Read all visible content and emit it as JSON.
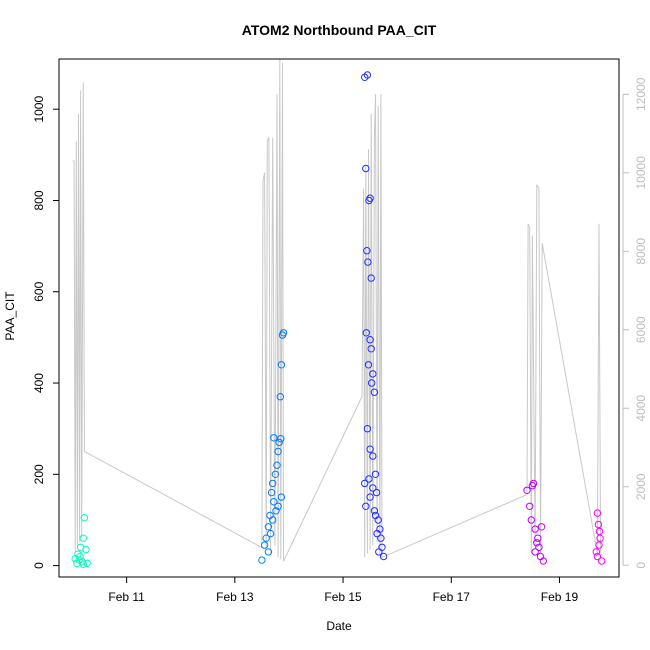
{
  "chart_data": {
    "type": "scatter",
    "title": "ATOM2 Northbound PAA_CIT",
    "xlabel": "Date",
    "ylabel": "PAA_CIT",
    "x_ticks": [
      "Feb 11",
      "Feb 13",
      "Feb 15",
      "Feb 17",
      "Feb 19"
    ],
    "x_tick_days": [
      11,
      13,
      15,
      17,
      19
    ],
    "xlim_days": [
      9.75,
      20.1
    ],
    "y_ticks": [
      "0",
      "200",
      "400",
      "600",
      "800",
      "1000"
    ],
    "y_tick_values": [
      0,
      200,
      400,
      600,
      800,
      1000
    ],
    "ylim": [
      -25,
      1110
    ],
    "y2_ticks": [
      "0",
      "2000",
      "4000",
      "6000",
      "8000",
      "10000",
      "12000"
    ],
    "y2_tick_values": [
      0,
      2000,
      4000,
      6000,
      8000,
      10000,
      12000
    ],
    "y2lim": [
      -300,
      12900
    ],
    "grid": false,
    "colors": {
      "secondary_line": "#c8c8c8",
      "right_axis": "#bdbdbd",
      "gradient": [
        "#00ffbf",
        "#00bfff",
        "#0040ff",
        "#8000ff",
        "#ff00ff"
      ]
    },
    "series": [
      {
        "values": [
          [
            10.08,
            5
          ],
          [
            10.1,
            25
          ],
          [
            10.12,
            12
          ],
          [
            10.15,
            40
          ],
          [
            10.18,
            8
          ],
          [
            10.2,
            60
          ],
          [
            10.22,
            105
          ],
          [
            10.25,
            35
          ],
          [
            10.05,
            15
          ],
          [
            10.14,
            20
          ],
          [
            10.2,
            3
          ],
          [
            10.27,
            5
          ],
          [
            13.5,
            12
          ],
          [
            13.55,
            45
          ],
          [
            13.58,
            60
          ],
          [
            13.62,
            85
          ],
          [
            13.65,
            110
          ],
          [
            13.68,
            160
          ],
          [
            13.7,
            180
          ],
          [
            13.72,
            140
          ],
          [
            13.75,
            200
          ],
          [
            13.78,
            220
          ],
          [
            13.8,
            250
          ],
          [
            13.82,
            270
          ],
          [
            13.85,
            278
          ],
          [
            13.72,
            280
          ],
          [
            13.88,
            505
          ],
          [
            13.9,
            510
          ],
          [
            13.86,
            440
          ],
          [
            13.84,
            370
          ],
          [
            13.76,
            120
          ],
          [
            13.8,
            130
          ],
          [
            13.66,
            70
          ],
          [
            13.7,
            100
          ],
          [
            13.62,
            30
          ],
          [
            13.86,
            150
          ],
          [
            15.4,
            1070
          ],
          [
            15.45,
            1075
          ],
          [
            15.42,
            870
          ],
          [
            15.48,
            800
          ],
          [
            15.5,
            805
          ],
          [
            15.44,
            690
          ],
          [
            15.46,
            665
          ],
          [
            15.52,
            630
          ],
          [
            15.43,
            510
          ],
          [
            15.5,
            495
          ],
          [
            15.52,
            475
          ],
          [
            15.47,
            440
          ],
          [
            15.55,
            420
          ],
          [
            15.53,
            400
          ],
          [
            15.58,
            380
          ],
          [
            15.45,
            300
          ],
          [
            15.5,
            255
          ],
          [
            15.55,
            240
          ],
          [
            15.6,
            200
          ],
          [
            15.4,
            180
          ],
          [
            15.62,
            160
          ],
          [
            15.42,
            130
          ],
          [
            15.5,
            150
          ],
          [
            15.58,
            120
          ],
          [
            15.65,
            100
          ],
          [
            15.68,
            80
          ],
          [
            15.7,
            60
          ],
          [
            15.72,
            40
          ],
          [
            15.75,
            20
          ],
          [
            15.66,
            30
          ],
          [
            15.6,
            110
          ],
          [
            15.55,
            170
          ],
          [
            15.48,
            190
          ],
          [
            15.63,
            70
          ],
          [
            18.4,
            165
          ],
          [
            18.45,
            130
          ],
          [
            18.5,
            175
          ],
          [
            18.52,
            180
          ],
          [
            18.48,
            100
          ],
          [
            18.55,
            80
          ],
          [
            18.6,
            60
          ],
          [
            18.62,
            40
          ],
          [
            18.65,
            20
          ],
          [
            18.7,
            10
          ],
          [
            18.58,
            50
          ],
          [
            18.67,
            85
          ],
          [
            18.55,
            30
          ],
          [
            19.7,
            115
          ],
          [
            19.72,
            90
          ],
          [
            19.75,
            60
          ],
          [
            19.73,
            45
          ],
          [
            19.68,
            30
          ],
          [
            19.7,
            20
          ],
          [
            19.78,
            10
          ],
          [
            19.74,
            75
          ]
        ]
      }
    ],
    "secondary_series": {
      "axis": "right",
      "values": [
        [
          10.0,
          10300
        ],
        [
          10.03,
          10300
        ],
        [
          10.05,
          350
        ],
        [
          10.07,
          10800
        ],
        [
          10.09,
          500
        ],
        [
          10.11,
          11500
        ],
        [
          10.13,
          600
        ],
        [
          10.15,
          12100
        ],
        [
          10.17,
          700
        ],
        [
          10.2,
          12300
        ],
        [
          10.22,
          2900
        ],
        [
          13.5,
          450
        ],
        [
          13.52,
          9800
        ],
        [
          13.55,
          10000
        ],
        [
          13.58,
          400
        ],
        [
          13.6,
          10800
        ],
        [
          13.63,
          10900
        ],
        [
          13.66,
          300
        ],
        [
          13.7,
          10900
        ],
        [
          13.74,
          500
        ],
        [
          13.78,
          12000
        ],
        [
          13.8,
          200
        ],
        [
          13.83,
          12900
        ],
        [
          13.85,
          150
        ],
        [
          13.88,
          12800
        ],
        [
          13.9,
          100
        ],
        [
          15.35,
          4300
        ],
        [
          15.38,
          9600
        ],
        [
          15.4,
          200
        ],
        [
          15.42,
          10200
        ],
        [
          15.45,
          300
        ],
        [
          15.47,
          10600
        ],
        [
          15.5,
          400
        ],
        [
          15.52,
          11500
        ],
        [
          15.55,
          500
        ],
        [
          15.58,
          10900
        ],
        [
          15.6,
          12000
        ],
        [
          15.63,
          600
        ],
        [
          15.65,
          11700
        ],
        [
          15.68,
          300
        ],
        [
          15.7,
          12000
        ],
        [
          15.72,
          200
        ],
        [
          18.4,
          1800
        ],
        [
          18.42,
          8700
        ],
        [
          18.45,
          8600
        ],
        [
          18.48,
          300
        ],
        [
          18.5,
          8400
        ],
        [
          18.55,
          500
        ],
        [
          18.58,
          9700
        ],
        [
          18.62,
          9600
        ],
        [
          18.65,
          300
        ],
        [
          18.68,
          8200
        ],
        [
          19.7,
          300
        ],
        [
          19.73,
          8700
        ],
        [
          19.76,
          300
        ]
      ]
    }
  }
}
